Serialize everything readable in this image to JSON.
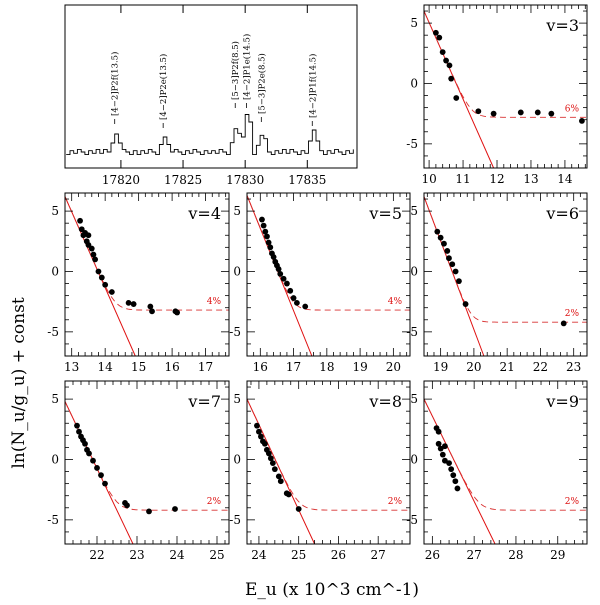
{
  "chart_data": {
    "type": "scatter",
    "ylabel": "ln(N_u/g_u) + const",
    "xlabel": "E_u (x 10^3 cm^-1)",
    "spectrum": {
      "type": "line",
      "xlim": [
        17815.5,
        17839
      ],
      "xticks": [
        17820,
        17825,
        17830,
        17835
      ],
      "line_labels": [
        {
          "wavenumber": 17819.5,
          "text": "[4−2]P2f(13.5)"
        },
        {
          "wavenumber": 17823.4,
          "text": "[4−2]P2e(13.5)"
        },
        {
          "wavenumber": 17829.2,
          "text": "[5−3]P2f(8.5)"
        },
        {
          "wavenumber": 17830.1,
          "text": "[4−2]P1e(14.5)"
        },
        {
          "wavenumber": 17831.3,
          "text": "[5−3]P2e(8.5)"
        },
        {
          "wavenumber": 17835.4,
          "text": "[4−2]P1f(14.5)"
        }
      ]
    },
    "panels": [
      {
        "label": "v=3",
        "percent": "6%",
        "xlim": [
          9.85,
          14.65
        ],
        "xticks": [
          10,
          11,
          12,
          13,
          14
        ],
        "ylim": [
          -7,
          6.5
        ],
        "yticks": [
          -5,
          0,
          5
        ],
        "points": [
          [
            10.2,
            4.2
          ],
          [
            10.3,
            3.8
          ],
          [
            10.4,
            2.6
          ],
          [
            10.5,
            1.9
          ],
          [
            10.6,
            1.5
          ],
          [
            10.65,
            0.4
          ],
          [
            10.8,
            -1.2
          ],
          [
            11.45,
            -2.3
          ],
          [
            11.9,
            -2.5
          ],
          [
            12.7,
            -2.4
          ],
          [
            13.2,
            -2.4
          ],
          [
            13.6,
            -2.5
          ],
          [
            14.5,
            -3.1
          ]
        ],
        "line": [
          [
            9.85,
            6.0
          ],
          [
            11.9,
            -7.0
          ]
        ],
        "plateau": -2.8,
        "turn_x": 11.3
      },
      {
        "label": "v=4",
        "percent": "4%",
        "xlim": [
          12.8,
          17.7
        ],
        "xticks": [
          13,
          14,
          15,
          16,
          17
        ],
        "ylim": [
          -7,
          6.5
        ],
        "yticks": [
          -5,
          0,
          5
        ],
        "points": [
          [
            13.25,
            4.2
          ],
          [
            13.3,
            3.5
          ],
          [
            13.35,
            3.0
          ],
          [
            13.4,
            3.2
          ],
          [
            13.45,
            2.5
          ],
          [
            13.5,
            2.2
          ],
          [
            13.5,
            3.0
          ],
          [
            13.6,
            1.9
          ],
          [
            13.65,
            1.4
          ],
          [
            13.7,
            1.0
          ],
          [
            13.8,
            0.0
          ],
          [
            13.9,
            -0.5
          ],
          [
            14.0,
            -1.1
          ],
          [
            14.2,
            -1.7
          ],
          [
            14.7,
            -2.6
          ],
          [
            14.85,
            -2.7
          ],
          [
            15.35,
            -2.9
          ],
          [
            15.4,
            -3.3
          ],
          [
            16.1,
            -3.3
          ],
          [
            16.15,
            -3.4
          ]
        ],
        "line": [
          [
            12.8,
            6.2
          ],
          [
            14.9,
            -7.0
          ]
        ],
        "plateau": -3.2,
        "turn_x": 14.6
      },
      {
        "label": "v=5",
        "percent": "4%",
        "xlim": [
          15.6,
          20.5
        ],
        "xticks": [
          16,
          17,
          18,
          19,
          20
        ],
        "ylim": [
          -7,
          6.5
        ],
        "yticks": [
          -5,
          0,
          5
        ],
        "points": [
          [
            16.05,
            4.3
          ],
          [
            16.1,
            3.8
          ],
          [
            16.15,
            3.3
          ],
          [
            16.2,
            2.9
          ],
          [
            16.25,
            2.4
          ],
          [
            16.3,
            2.0
          ],
          [
            16.35,
            1.5
          ],
          [
            16.4,
            1.2
          ],
          [
            16.45,
            0.8
          ],
          [
            16.5,
            0.5
          ],
          [
            16.55,
            0.2
          ],
          [
            16.6,
            -0.2
          ],
          [
            16.7,
            -0.6
          ],
          [
            16.8,
            -1.0
          ],
          [
            16.9,
            -1.6
          ],
          [
            17.0,
            -2.2
          ],
          [
            17.1,
            -2.6
          ],
          [
            17.35,
            -2.9
          ]
        ],
        "line": [
          [
            15.6,
            6.3
          ],
          [
            17.55,
            -7.0
          ]
        ],
        "plateau": -3.2,
        "turn_x": 17.3
      },
      {
        "label": "v=6",
        "percent": "2%",
        "xlim": [
          18.5,
          23.4
        ],
        "xticks": [
          19,
          20,
          21,
          22,
          23
        ],
        "ylim": [
          -7,
          6.5
        ],
        "yticks": [
          -5,
          0,
          5
        ],
        "points": [
          [
            18.9,
            3.3
          ],
          [
            19.0,
            2.8
          ],
          [
            19.1,
            2.3
          ],
          [
            19.2,
            1.7
          ],
          [
            19.25,
            1.1
          ],
          [
            19.35,
            0.6
          ],
          [
            19.45,
            0.0
          ],
          [
            19.55,
            -0.8
          ],
          [
            19.75,
            -2.7
          ],
          [
            22.7,
            -4.3
          ]
        ],
        "line": [
          [
            18.5,
            6.2
          ],
          [
            20.3,
            -7.0
          ]
        ],
        "plateau": -4.2,
        "turn_x": 20.3
      },
      {
        "label": "v=7",
        "percent": "2%",
        "xlim": [
          21.2,
          25.3
        ],
        "xticks": [
          22,
          23,
          24,
          25
        ],
        "ylim": [
          -7,
          6.5
        ],
        "yticks": [
          -5,
          0,
          5
        ],
        "points": [
          [
            21.5,
            2.8
          ],
          [
            21.55,
            2.3
          ],
          [
            21.6,
            1.9
          ],
          [
            21.65,
            1.6
          ],
          [
            21.7,
            1.3
          ],
          [
            21.75,
            0.8
          ],
          [
            21.8,
            0.5
          ],
          [
            21.9,
            -0.1
          ],
          [
            22.0,
            -0.7
          ],
          [
            22.1,
            -1.3
          ],
          [
            22.2,
            -2.0
          ],
          [
            22.7,
            -3.6
          ],
          [
            22.75,
            -3.8
          ],
          [
            23.3,
            -4.3
          ],
          [
            23.95,
            -4.1
          ]
        ],
        "line": [
          [
            21.2,
            4.8
          ],
          [
            22.9,
            -7.0
          ]
        ],
        "plateau": -4.2,
        "turn_x": 22.6
      },
      {
        "label": "v=8",
        "percent": "2%",
        "xlim": [
          23.7,
          27.8
        ],
        "xticks": [
          24,
          25,
          26,
          27
        ],
        "ylim": [
          -7,
          6.5
        ],
        "yticks": [
          -5,
          0,
          5
        ],
        "points": [
          [
            23.95,
            2.8
          ],
          [
            24.0,
            2.3
          ],
          [
            24.05,
            1.9
          ],
          [
            24.1,
            1.5
          ],
          [
            24.15,
            1.3
          ],
          [
            24.2,
            0.8
          ],
          [
            24.25,
            0.5
          ],
          [
            24.3,
            0.1
          ],
          [
            24.35,
            -0.3
          ],
          [
            24.4,
            -0.8
          ],
          [
            24.5,
            -1.4
          ],
          [
            24.55,
            -1.8
          ],
          [
            24.7,
            -2.8
          ],
          [
            24.75,
            -2.9
          ],
          [
            25.0,
            -4.1
          ]
        ],
        "line": [
          [
            23.7,
            5.0
          ],
          [
            25.4,
            -7.0
          ]
        ],
        "plateau": -4.2,
        "turn_x": 25.2
      },
      {
        "label": "v=9",
        "percent": "2%",
        "xlim": [
          25.8,
          29.7
        ],
        "xticks": [
          26,
          27,
          28,
          29
        ],
        "ylim": [
          -7,
          6.5
        ],
        "yticks": [
          -5,
          0,
          5
        ],
        "points": [
          [
            26.1,
            2.6
          ],
          [
            26.15,
            2.3
          ],
          [
            26.15,
            1.3
          ],
          [
            26.2,
            0.9
          ],
          [
            26.25,
            0.4
          ],
          [
            26.3,
            1.1
          ],
          [
            26.3,
            -0.1
          ],
          [
            26.4,
            -0.3
          ],
          [
            26.45,
            -0.8
          ],
          [
            26.5,
            -1.3
          ],
          [
            26.55,
            -1.8
          ],
          [
            26.6,
            -2.4
          ]
        ],
        "line": [
          [
            25.8,
            5.0
          ],
          [
            27.5,
            -7.0
          ]
        ],
        "plateau": -4.2,
        "turn_x": 27.3
      }
    ]
  }
}
